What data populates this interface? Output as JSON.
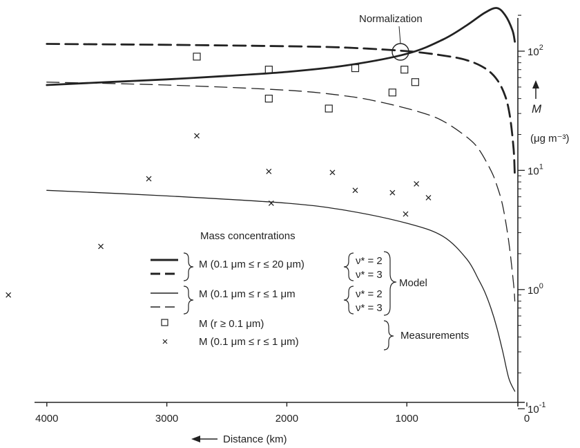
{
  "chart_data": {
    "type": "line",
    "annotation": "Normalization",
    "xlabel": "Distance (km)",
    "ylabel": "M",
    "yunit": "(μg m⁻³)",
    "x_axis": {
      "reversed": true,
      "range": [
        4300,
        0
      ],
      "ticks": [
        4000,
        3000,
        2000,
        1000,
        0
      ],
      "tick_labels": [
        "4000",
        "3000",
        "2000",
        "1000",
        "0"
      ]
    },
    "y_axis": {
      "scale": "log",
      "range": [
        0.1,
        300
      ],
      "tick_labels": [
        "10^-1",
        "10^0",
        "10^1",
        "10^2"
      ]
    },
    "legend": {
      "title": "Mass concentrations",
      "model_label": "Model",
      "measurements_label": "Measurements",
      "entries": [
        {
          "label": "M (0.1 μm ≤ r ≤ 20 μm)",
          "param": "ν* = 2"
        },
        {
          "label": "",
          "param": "ν* = 3"
        },
        {
          "label": "M (0.1 μm ≤ r ≤ 1 μm",
          "param": "ν* = 2"
        },
        {
          "label": "",
          "param": "ν* = 3"
        },
        {
          "label": "M (r ≥ 0.1 μm)"
        },
        {
          "label": "M (0.1 μm ≤ r ≤ 1 μm)"
        }
      ]
    },
    "series": [
      {
        "style": "thick-solid",
        "x": [
          4000,
          3500,
          3000,
          2500,
          2000,
          1500,
          1000,
          700,
          500,
          350,
          250,
          180,
          120,
          100
        ],
        "y": [
          52,
          55,
          58,
          62,
          67,
          76,
          95,
          125,
          165,
          210,
          230,
          200,
          150,
          120
        ]
      },
      {
        "style": "thick-dashed",
        "x": [
          4000,
          3000,
          2000,
          1500,
          1000,
          700,
          500,
          350,
          250,
          180,
          140,
          110,
          100
        ],
        "y": [
          115,
          113,
          110,
          107,
          100,
          92,
          84,
          72,
          58,
          42,
          28,
          15,
          9
        ]
      },
      {
        "style": "thin-dashed",
        "x": [
          4000,
          3000,
          2000,
          1500,
          1200,
          900,
          700,
          500,
          400,
          300,
          250,
          200,
          150,
          110,
          100
        ],
        "y": [
          55,
          52,
          47,
          42,
          37,
          31,
          26,
          19,
          15,
          10,
          7.5,
          5,
          2.5,
          1.1,
          0.8
        ]
      },
      {
        "style": "thin-solid",
        "x": [
          4000,
          3000,
          2000,
          1500,
          1000,
          700,
          500,
          400,
          350,
          300,
          250,
          200,
          150,
          100
        ],
        "y": [
          6.8,
          6.1,
          5.3,
          4.6,
          3.6,
          2.8,
          1.8,
          1.2,
          0.95,
          0.7,
          0.48,
          0.3,
          0.18,
          0.14
        ]
      }
    ],
    "measurements_squares": {
      "x": [
        2750,
        2150,
        2150,
        1650,
        1430,
        1120,
        1020,
        930
      ],
      "y": [
        90,
        70,
        40,
        33,
        72,
        45,
        70,
        55
      ]
    },
    "measurements_crosses": {
      "x": [
        4320,
        3550,
        3150,
        2750,
        2150,
        2130,
        1620,
        1430,
        1120,
        1010,
        920,
        820
      ],
      "y": [
        0.9,
        2.3,
        8.5,
        19.5,
        9.8,
        5.3,
        9.6,
        6.8,
        6.5,
        4.3,
        7.7,
        5.9
      ]
    }
  }
}
